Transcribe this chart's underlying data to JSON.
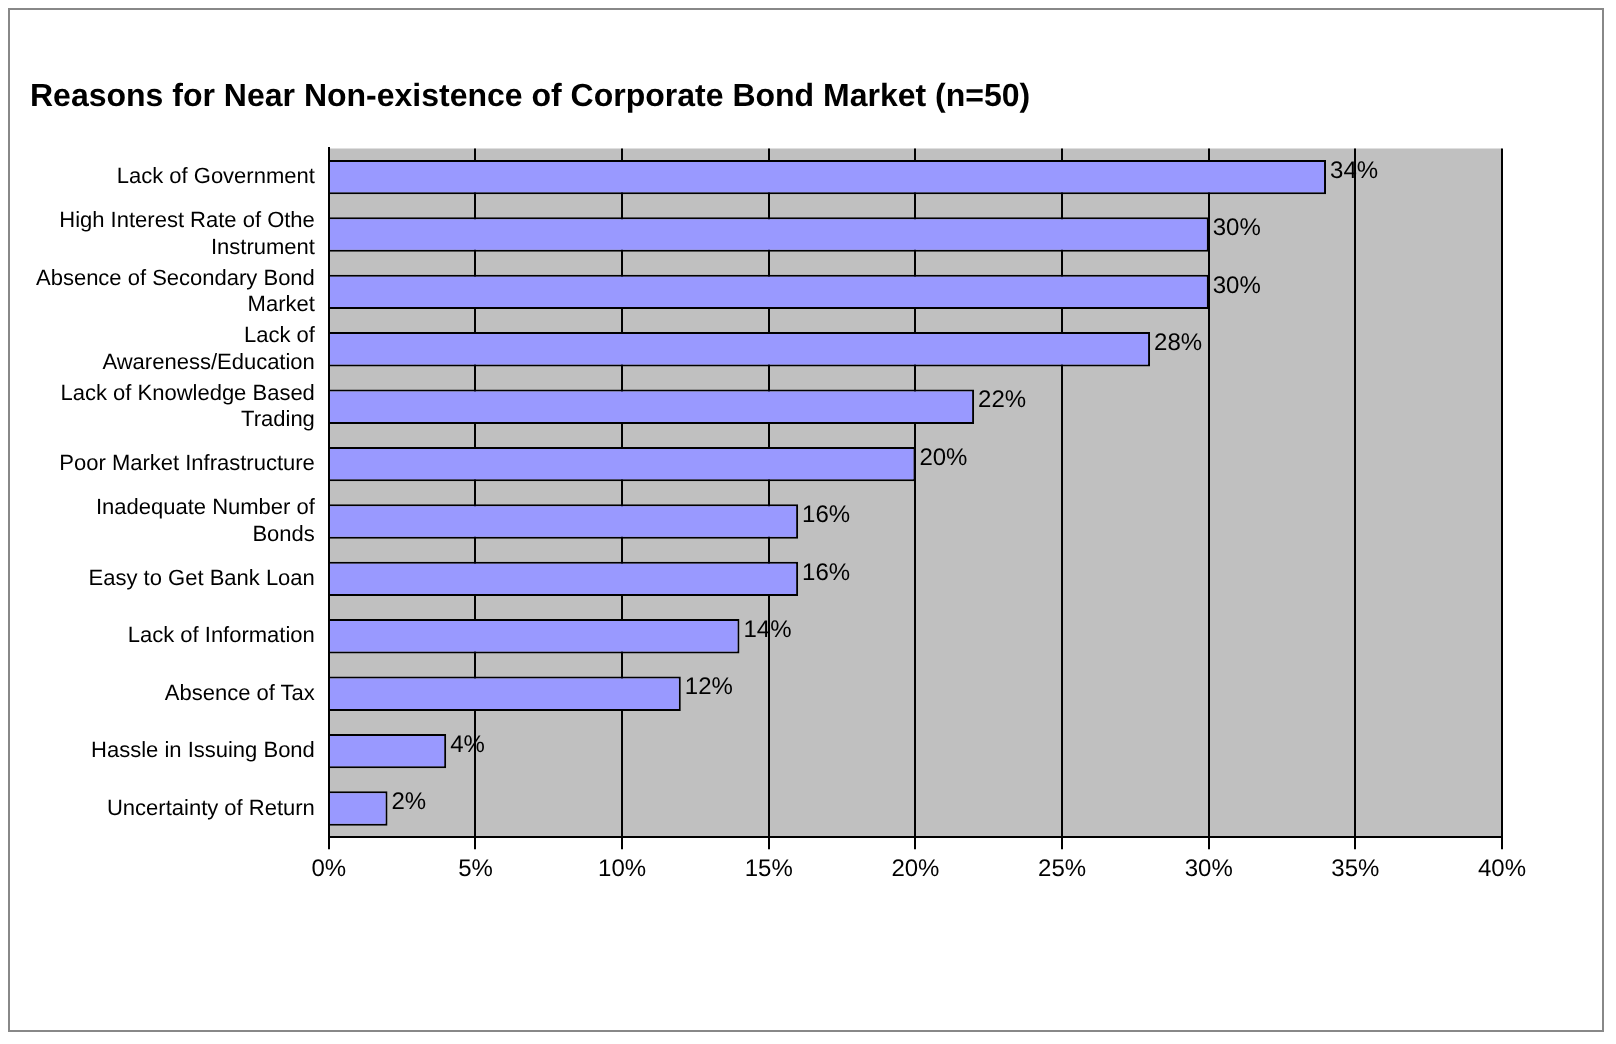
{
  "chart_data": {
    "type": "bar",
    "orientation": "horizontal",
    "title": "Reasons for Near Non-existence of Corporate Bond Market (n=50)",
    "categories": [
      "Lack of Government",
      "High Interest Rate of Othe Instrument",
      "Absence of Secondary Bond Market",
      "Lack of Awareness/Education",
      "Lack of Knowledge Based Trading",
      "Poor Market Infrastructure",
      "Inadequate Number of Bonds",
      "Easy to Get Bank Loan",
      "Lack of Information",
      "Absence of Tax",
      "Hassle in Issuing Bond",
      "Uncertainty of Return"
    ],
    "values": [
      34,
      30,
      30,
      28,
      22,
      20,
      16,
      16,
      14,
      12,
      4,
      2
    ],
    "value_labels": [
      "34%",
      "30%",
      "30%",
      "28%",
      "22%",
      "20%",
      "16%",
      "16%",
      "14%",
      "12%",
      "4%",
      "2%"
    ],
    "color": "#9999ff",
    "xlim": [
      0,
      40
    ],
    "xticks": [
      {
        "value": 0,
        "label": "0%"
      },
      {
        "value": 5,
        "label": "5%"
      },
      {
        "value": 10,
        "label": "10%"
      },
      {
        "value": 15,
        "label": "15%"
      },
      {
        "value": 20,
        "label": "20%"
      },
      {
        "value": 25,
        "label": "25%"
      },
      {
        "value": 30,
        "label": "30%"
      },
      {
        "value": 35,
        "label": "35%"
      },
      {
        "value": 40,
        "label": "40%"
      }
    ],
    "grid": "x",
    "legend": false
  }
}
